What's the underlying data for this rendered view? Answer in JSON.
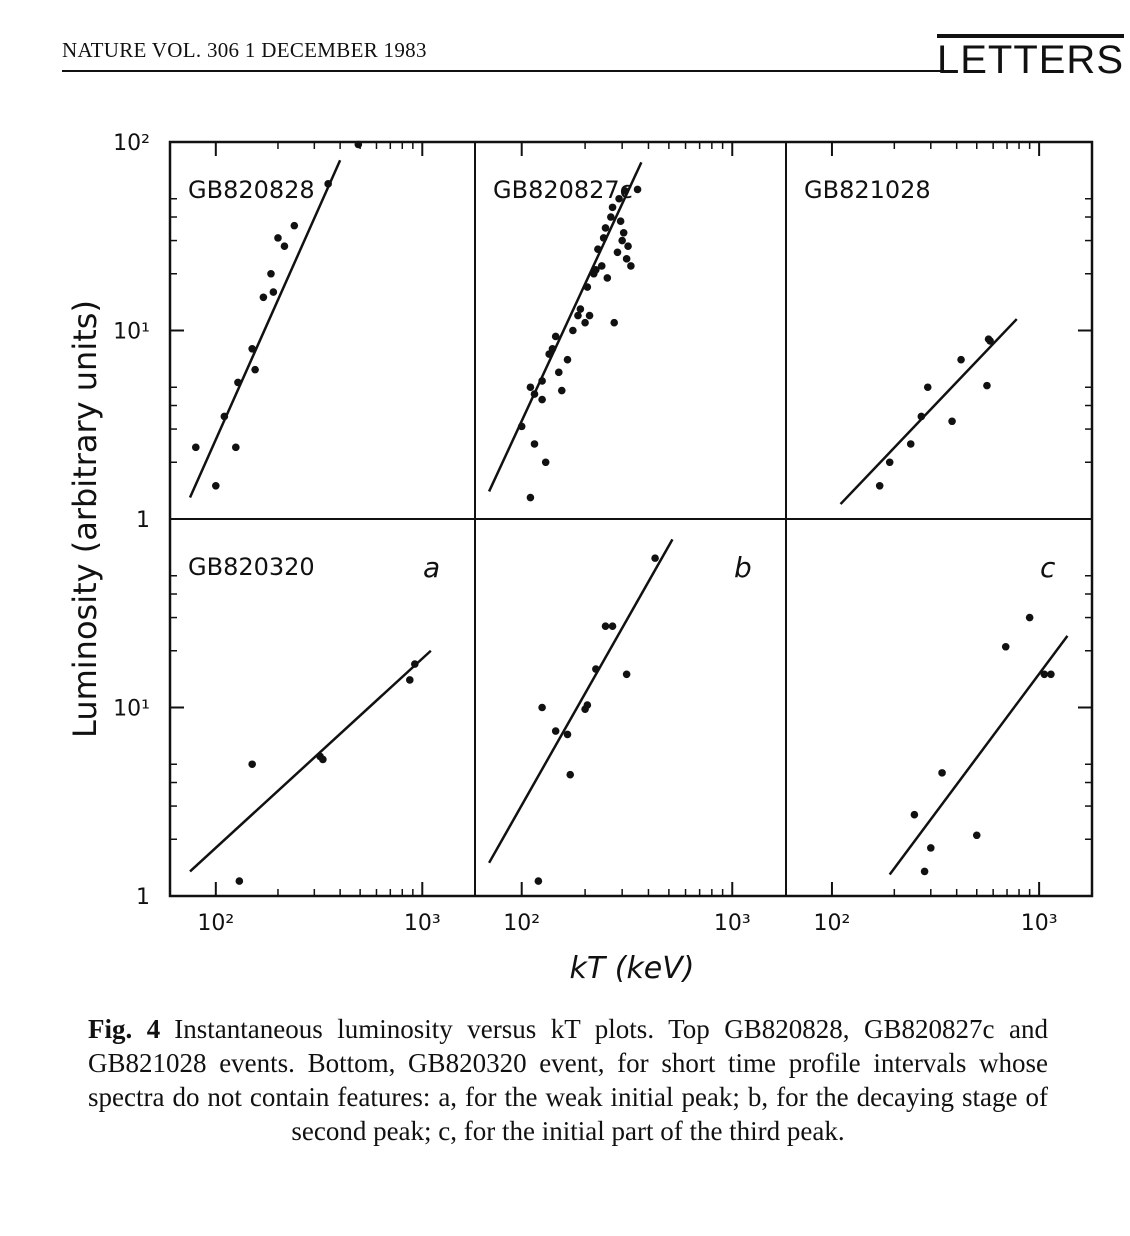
{
  "header": {
    "journal": "NATURE VOL. 306 1 DECEMBER 1983",
    "section": "LETTERS"
  },
  "caption": {
    "label": "Fig. 4",
    "text": "Instantaneous luminosity versus kT plots. Top GB820828, GB820827c and GB821028 events. Bottom, GB820320 event, for short time profile intervals whose spectra do not contain features: a, for the weak initial peak; b, for the decaying stage of second peak; c, for the initial part of the third peak."
  },
  "colors": {
    "ink": "#111111",
    "background": "#ffffff"
  },
  "chart_data": {
    "type": "scatter",
    "xlabel": "kT (keV)",
    "ylabel": "Luminosity  (arbitrary units)",
    "xscale": "log",
    "yscale": "log",
    "xlim": [
      60,
      1800
    ],
    "ylim": [
      1,
      100
    ],
    "x_ticks": [
      "10²",
      "10³"
    ],
    "y_ticks_top": [
      "10²",
      "10¹",
      "1"
    ],
    "y_ticks_bottom": [
      "10¹",
      "1"
    ],
    "panels": [
      {
        "id": "top-left",
        "label": "GB820828",
        "letter": "",
        "points": [
          [
            80,
            2.4
          ],
          [
            100,
            1.5
          ],
          [
            110,
            3.5
          ],
          [
            125,
            2.4
          ],
          [
            128,
            5.3
          ],
          [
            150,
            8
          ],
          [
            155,
            6.2
          ],
          [
            170,
            15
          ],
          [
            185,
            20
          ],
          [
            190,
            16
          ],
          [
            200,
            31
          ],
          [
            215,
            28
          ],
          [
            240,
            36
          ],
          [
            350,
            60
          ],
          [
            490,
            97
          ]
        ],
        "fit": [
          [
            75,
            1.3
          ],
          [
            400,
            80
          ]
        ]
      },
      {
        "id": "top-middle",
        "label": "GB820827c",
        "letter": "",
        "points": [
          [
            100,
            3.1
          ],
          [
            110,
            5
          ],
          [
            115,
            2.5
          ],
          [
            115,
            4.6
          ],
          [
            110,
            1.3
          ],
          [
            125,
            4.3
          ],
          [
            125,
            5.4
          ],
          [
            130,
            2
          ],
          [
            135,
            7.5
          ],
          [
            140,
            8
          ],
          [
            145,
            9.3
          ],
          [
            150,
            6
          ],
          [
            155,
            4.8
          ],
          [
            165,
            7
          ],
          [
            175,
            10
          ],
          [
            185,
            12
          ],
          [
            190,
            13
          ],
          [
            200,
            11
          ],
          [
            205,
            17
          ],
          [
            210,
            12
          ],
          [
            220,
            20
          ],
          [
            225,
            21
          ],
          [
            230,
            27
          ],
          [
            240,
            22
          ],
          [
            245,
            31
          ],
          [
            250,
            35
          ],
          [
            255,
            19
          ],
          [
            265,
            40
          ],
          [
            270,
            45
          ],
          [
            275,
            11
          ],
          [
            285,
            26
          ],
          [
            290,
            50
          ],
          [
            295,
            38
          ],
          [
            300,
            30
          ],
          [
            305,
            33
          ],
          [
            310,
            55
          ],
          [
            315,
            24
          ],
          [
            320,
            28
          ],
          [
            330,
            22
          ],
          [
            355,
            56
          ]
        ],
        "fit": [
          [
            70,
            1.4
          ],
          [
            370,
            78
          ]
        ]
      },
      {
        "id": "top-right",
        "label": "GB821028",
        "letter": "",
        "points": [
          [
            170,
            1.5
          ],
          [
            190,
            2
          ],
          [
            240,
            2.5
          ],
          [
            270,
            3.5
          ],
          [
            290,
            5
          ],
          [
            380,
            3.3
          ],
          [
            420,
            7
          ],
          [
            560,
            5.1
          ],
          [
            570,
            9
          ],
          [
            580,
            8.8
          ]
        ],
        "fit": [
          [
            110,
            1.2
          ],
          [
            780,
            11.5
          ]
        ]
      },
      {
        "id": "bottom-left",
        "label": "GB820320",
        "letter": "a",
        "points": [
          [
            130,
            1.2
          ],
          [
            150,
            5
          ],
          [
            320,
            5.5
          ],
          [
            330,
            5.3
          ],
          [
            870,
            14
          ],
          [
            920,
            17
          ]
        ],
        "fit": [
          [
            75,
            1.35
          ],
          [
            1100,
            20
          ]
        ]
      },
      {
        "id": "bottom-middle",
        "label": "",
        "letter": "b",
        "points": [
          [
            120,
            1.2
          ],
          [
            125,
            10
          ],
          [
            145,
            7.5
          ],
          [
            165,
            7.2
          ],
          [
            170,
            4.4
          ],
          [
            200,
            9.8
          ],
          [
            205,
            10.3
          ],
          [
            225,
            16
          ],
          [
            250,
            27
          ],
          [
            270,
            27
          ],
          [
            315,
            15
          ],
          [
            430,
            62
          ]
        ],
        "fit": [
          [
            70,
            1.5
          ],
          [
            520,
            78
          ]
        ]
      },
      {
        "id": "bottom-right",
        "label": "",
        "letter": "c",
        "points": [
          [
            250,
            2.7
          ],
          [
            280,
            1.35
          ],
          [
            300,
            1.8
          ],
          [
            340,
            4.5
          ],
          [
            500,
            2.1
          ],
          [
            690,
            21
          ],
          [
            900,
            30
          ],
          [
            1060,
            15
          ],
          [
            1140,
            15
          ]
        ],
        "fit": [
          [
            190,
            1.3
          ],
          [
            1370,
            24
          ]
        ]
      }
    ]
  }
}
